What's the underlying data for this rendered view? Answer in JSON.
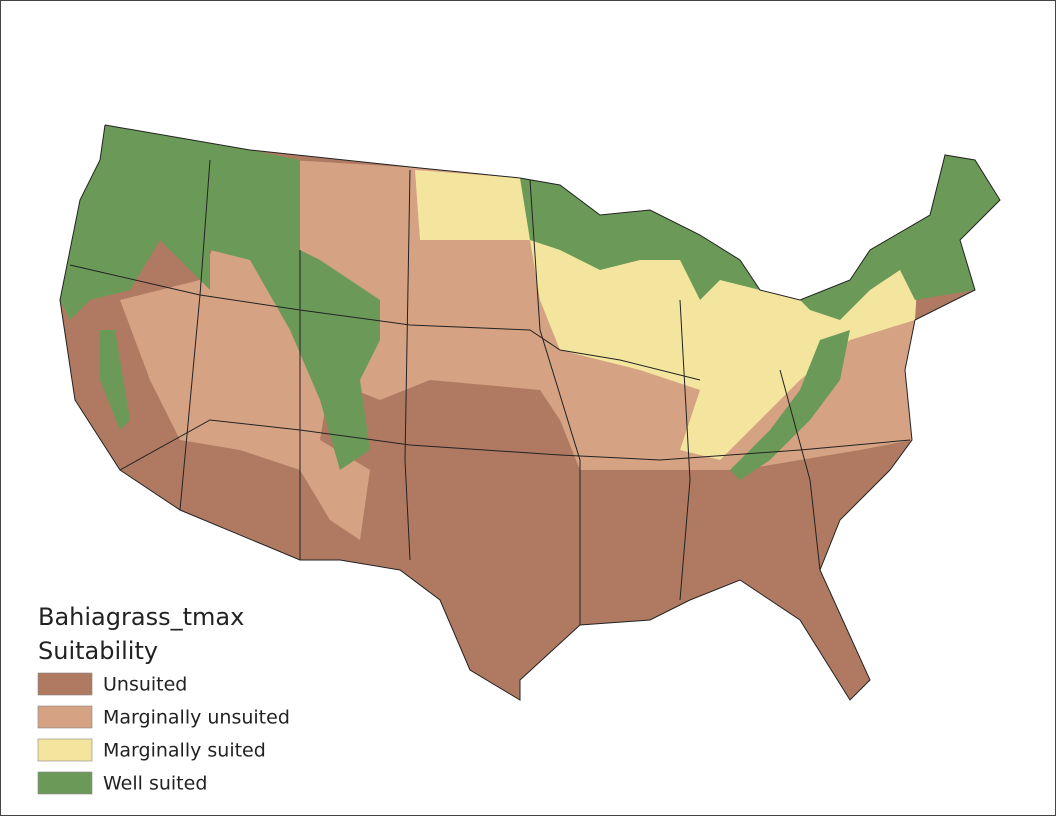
{
  "legend": {
    "title": [
      "Bahiagrass_tmax",
      "Suitability"
    ],
    "items": [
      {
        "label": "Unsuited",
        "color": "#b07a62"
      },
      {
        "label": "Marginally unsuited",
        "color": "#d5a283"
      },
      {
        "label": "Marginally suited",
        "color": "#f3e59e"
      },
      {
        "label": "Well suited",
        "color": "#6b9a58"
      }
    ]
  }
}
